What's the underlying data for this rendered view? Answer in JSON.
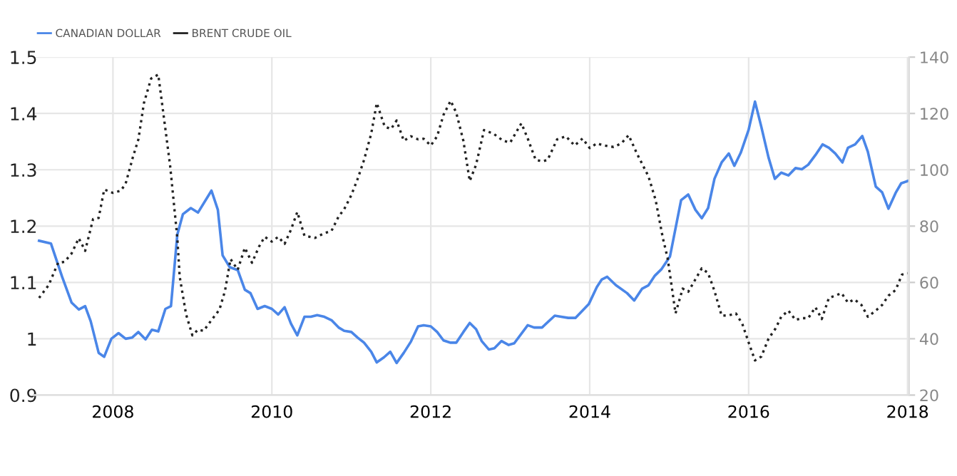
{
  "chart_data": {
    "type": "line",
    "series": [
      {
        "name": "CANADIAN DOLLAR",
        "color": "#4a86e8",
        "line_style": "solid",
        "axis": "y",
        "x": [
          2007.07,
          2007.22,
          2007.36,
          2007.48,
          2007.57,
          2007.65,
          2007.72,
          2007.82,
          2007.89,
          2007.98,
          2008.07,
          2008.16,
          2008.24,
          2008.32,
          2008.41,
          2008.49,
          2008.57,
          2008.66,
          2008.73,
          2008.81,
          2008.88,
          2008.98,
          2009.07,
          2009.24,
          2009.32,
          2009.38,
          2009.47,
          2009.57,
          2009.66,
          2009.73,
          2009.82,
          2009.91,
          2010.0,
          2010.08,
          2010.16,
          2010.24,
          2010.32,
          2010.41,
          2010.49,
          2010.57,
          2010.66,
          2010.75,
          2010.84,
          2010.91,
          2011.0,
          2011.08,
          2011.16,
          2011.25,
          2011.32,
          2011.41,
          2011.49,
          2011.57,
          2011.66,
          2011.75,
          2011.84,
          2011.91,
          2012.0,
          2012.08,
          2012.16,
          2012.25,
          2012.32,
          2012.41,
          2012.49,
          2012.57,
          2012.64,
          2012.73,
          2012.8,
          2012.89,
          2012.98,
          2013.05,
          2013.22,
          2013.3,
          2013.4,
          2013.56,
          2013.64,
          2013.73,
          2013.82,
          2013.99,
          2014.09,
          2014.15,
          2014.22,
          2014.33,
          2014.47,
          2014.56,
          2014.66,
          2014.74,
          2014.82,
          2014.9,
          2015.01,
          2015.15,
          2015.24,
          2015.33,
          2015.41,
          2015.49,
          2015.57,
          2015.66,
          2015.75,
          2015.82,
          2015.9,
          2016.0,
          2016.08,
          2016.16,
          2016.25,
          2016.33,
          2016.41,
          2016.5,
          2016.59,
          2016.67,
          2016.75,
          2016.84,
          2016.93,
          2017.01,
          2017.09,
          2017.18,
          2017.25,
          2017.34,
          2017.43,
          2017.5,
          2017.6,
          2017.68,
          2017.76,
          2017.85,
          2017.92,
          2018.0
        ],
        "values": [
          1.174,
          1.169,
          1.11,
          1.064,
          1.052,
          1.058,
          1.031,
          0.975,
          0.968,
          1.0,
          1.01,
          1.0,
          1.002,
          1.012,
          0.999,
          1.016,
          1.013,
          1.053,
          1.058,
          1.185,
          1.221,
          1.232,
          1.224,
          1.263,
          1.229,
          1.148,
          1.127,
          1.122,
          1.087,
          1.081,
          1.053,
          1.058,
          1.053,
          1.043,
          1.056,
          1.027,
          1.006,
          1.039,
          1.039,
          1.042,
          1.039,
          1.033,
          1.02,
          1.014,
          1.012,
          1.002,
          0.993,
          0.977,
          0.958,
          0.967,
          0.977,
          0.957,
          0.975,
          0.995,
          1.022,
          1.024,
          1.022,
          1.012,
          0.997,
          0.993,
          0.993,
          1.012,
          1.028,
          1.017,
          0.996,
          0.981,
          0.983,
          0.996,
          0.989,
          0.992,
          1.024,
          1.02,
          1.02,
          1.041,
          1.039,
          1.037,
          1.037,
          1.062,
          1.092,
          1.105,
          1.11,
          1.095,
          1.081,
          1.068,
          1.089,
          1.095,
          1.112,
          1.123,
          1.146,
          1.246,
          1.256,
          1.229,
          1.214,
          1.232,
          1.284,
          1.313,
          1.329,
          1.307,
          1.33,
          1.371,
          1.421,
          1.376,
          1.322,
          1.284,
          1.295,
          1.29,
          1.303,
          1.301,
          1.309,
          1.326,
          1.345,
          1.339,
          1.329,
          1.313,
          1.339,
          1.345,
          1.36,
          1.332,
          1.27,
          1.26,
          1.231,
          1.259,
          1.276,
          1.28
        ]
      },
      {
        "name": "BRENT CRUDE OIL",
        "color": "#222222",
        "line_style": "dotted",
        "axis": "y2",
        "x": [
          2007.07,
          2007.19,
          2007.31,
          2007.39,
          2007.48,
          2007.57,
          2007.65,
          2007.75,
          2007.82,
          2007.89,
          2008.0,
          2008.1,
          2008.16,
          2008.25,
          2008.32,
          2008.39,
          2008.48,
          2008.57,
          2008.66,
          2008.72,
          2008.81,
          2008.84,
          2008.92,
          2009.0,
          2009.07,
          2009.14,
          2009.25,
          2009.34,
          2009.41,
          2009.48,
          2009.57,
          2009.66,
          2009.75,
          2009.84,
          2009.91,
          2010.0,
          2010.08,
          2010.16,
          2010.24,
          2010.32,
          2010.41,
          2010.54,
          2010.66,
          2010.75,
          2010.84,
          2010.91,
          2011.0,
          2011.08,
          2011.16,
          2011.25,
          2011.32,
          2011.42,
          2011.5,
          2011.57,
          2011.66,
          2011.75,
          2011.84,
          2011.91,
          2012.0,
          2012.08,
          2012.16,
          2012.25,
          2012.32,
          2012.41,
          2012.49,
          2012.57,
          2012.67,
          2012.79,
          2012.91,
          2013.0,
          2013.14,
          2013.22,
          2013.32,
          2013.41,
          2013.47,
          2013.59,
          2013.7,
          2013.81,
          2013.91,
          2014.0,
          2014.09,
          2014.18,
          2014.3,
          2014.4,
          2014.49,
          2014.59,
          2014.74,
          2014.83,
          2014.92,
          2014.98,
          2015.08,
          2015.17,
          2015.24,
          2015.41,
          2015.49,
          2015.57,
          2015.66,
          2015.75,
          2015.84,
          2015.92,
          2016.0,
          2016.08,
          2016.16,
          2016.25,
          2016.34,
          2016.41,
          2016.5,
          2016.59,
          2016.67,
          2016.75,
          2016.84,
          2016.92,
          2017.01,
          2017.09,
          2017.17,
          2017.25,
          2017.33,
          2017.42,
          2017.5,
          2017.6,
          2017.68,
          2017.76,
          2017.85,
          2017.93,
          2018.0
        ],
        "values": [
          54.5,
          59,
          67,
          67.3,
          70.3,
          75.7,
          71.2,
          82.5,
          82.9,
          93,
          91.8,
          92.6,
          95.1,
          104.4,
          110.8,
          123.7,
          132.4,
          133.8,
          114.5,
          101.3,
          75.8,
          62,
          48.7,
          41.2,
          43.2,
          42.8,
          47,
          50.3,
          57,
          68.3,
          64.5,
          72.3,
          67,
          72.8,
          76.2,
          74.5,
          76.2,
          73.7,
          78.7,
          85,
          76.6,
          75.8,
          77.5,
          78.3,
          83.4,
          86,
          91,
          96.8,
          103.5,
          112.8,
          123.7,
          115.3,
          114.5,
          117.5,
          110.3,
          111.9,
          110.8,
          111,
          108.6,
          111.9,
          119.5,
          124.5,
          120.3,
          110.3,
          96,
          101.8,
          114.1,
          112.8,
          110.3,
          109.7,
          116.5,
          111.1,
          103.5,
          103,
          103.5,
          110.8,
          111.9,
          108.6,
          111.1,
          107.7,
          109.4,
          108.6,
          108.1,
          109.4,
          112.3,
          106,
          97.6,
          89.2,
          75.8,
          68.7,
          49,
          57.8,
          56.7,
          65,
          63.3,
          57,
          48.2,
          48.3,
          49,
          45.3,
          38.7,
          32.3,
          33.7,
          40,
          43.7,
          47.8,
          50,
          46.7,
          47.3,
          47.3,
          51.2,
          47,
          54.5,
          55.3,
          56.2,
          52.8,
          54,
          52,
          47.8,
          50,
          52,
          55.3,
          57.3,
          62.8,
          63.3
        ]
      }
    ],
    "xlim": [
      2007.0,
      2018.02
    ],
    "xticks": [
      2008,
      2010,
      2012,
      2014,
      2016,
      2018
    ],
    "ylim": [
      0.9,
      1.5
    ],
    "yticks": [
      0.9,
      1,
      1.1,
      1.2,
      1.3,
      1.4,
      1.5
    ],
    "y2lim": [
      20,
      140
    ],
    "y2ticks": [
      20,
      40,
      60,
      80,
      100,
      120,
      140
    ],
    "grid": true,
    "legend": "top left"
  }
}
